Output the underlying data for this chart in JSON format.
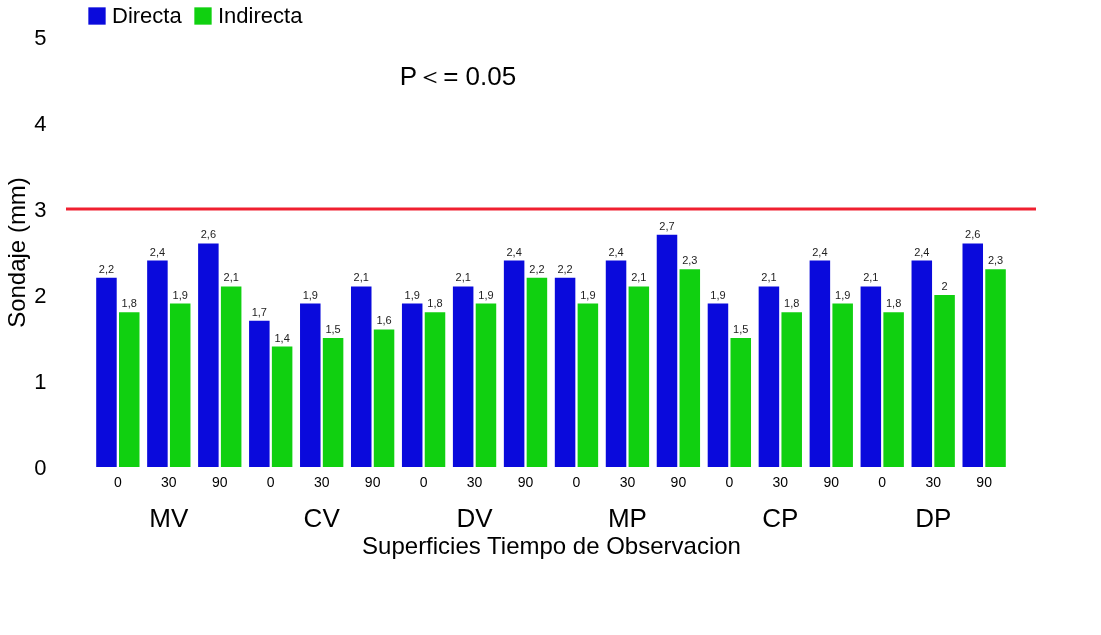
{
  "chart_data": {
    "type": "bar",
    "xlabel": "Superficies  Tiempo de Observacion",
    "ylabel": "Sondaje  (mm)",
    "categories": [
      "0",
      "30",
      "90",
      "0",
      "30",
      "90",
      "0",
      "30",
      "90",
      "0",
      "30",
      "90",
      "0",
      "30",
      "90",
      "0",
      "30",
      "90"
    ],
    "series": [
      {
        "name": "Directa",
        "color": "#0a0adc",
        "values": [
          2.2,
          2.4,
          2.6,
          1.7,
          1.9,
          2.1,
          1.9,
          2.1,
          2.4,
          2.2,
          2.4,
          2.7,
          1.9,
          2.1,
          2.4,
          2.1,
          2.4,
          2.6
        ],
        "value_labels": [
          "2,2",
          "2,4",
          "2,6",
          "1,7",
          "1,9",
          "2,1",
          "1,9",
          "2,1",
          "2,4",
          "2,2",
          "2,4",
          "2,7",
          "1,9",
          "2,1",
          "2,4",
          "2,1",
          "2,4",
          "2,6"
        ]
      },
      {
        "name": "Indirecta",
        "color": "#10d010",
        "values": [
          1.8,
          1.9,
          2.1,
          1.4,
          1.5,
          1.6,
          1.8,
          1.9,
          2.2,
          1.9,
          2.1,
          2.3,
          1.5,
          1.8,
          1.9,
          1.8,
          2,
          2.3
        ],
        "value_labels": [
          "1,8",
          "1,9",
          "2,1",
          "1,4",
          "1,5",
          "1,6",
          "1,8",
          "1,9",
          "2,2",
          "1,9",
          "2,1",
          "2,3",
          "1,5",
          "1,8",
          "1,9",
          "1,8",
          "2",
          "2,3"
        ]
      }
    ],
    "ylim": [
      0,
      5
    ],
    "yticks": [
      0,
      1,
      2,
      3,
      4,
      5
    ],
    "grid": false,
    "legend": "top",
    "ref_lines": [
      {
        "axis": "y",
        "value": 3,
        "color": "#f02030",
        "line_style": "solid"
      }
    ],
    "annotations": [
      "P＜= 0.05",
      "MV",
      "CV",
      "DV",
      "MP",
      "CP",
      "DP"
    ]
  }
}
